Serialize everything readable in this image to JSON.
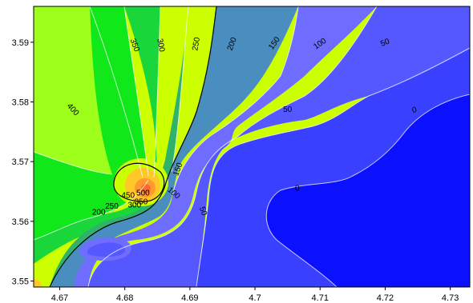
{
  "chart_data": {
    "type": "heatmap",
    "subtype": "filled-contour",
    "title": "",
    "xlabel": "",
    "ylabel": "",
    "xlim": [
      4.666,
      4.733
    ],
    "ylim": [
      3.549,
      3.596
    ],
    "x_ticks": [
      {
        "value": 4.67,
        "label": "4.67"
      },
      {
        "value": 4.68,
        "label": "4.68"
      },
      {
        "value": 4.69,
        "label": "4.69"
      },
      {
        "value": 4.7,
        "label": "4.7"
      },
      {
        "value": 4.71,
        "label": "4.71"
      },
      {
        "value": 4.72,
        "label": "4.72"
      },
      {
        "value": 4.73,
        "label": "4.73"
      }
    ],
    "y_ticks": [
      {
        "value": 3.55,
        "label": "3.55"
      },
      {
        "value": 3.56,
        "label": "3.56"
      },
      {
        "value": 3.57,
        "label": "3.57"
      },
      {
        "value": 3.58,
        "label": "3.58"
      },
      {
        "value": 3.59,
        "label": "3.59"
      }
    ],
    "levels": [
      0,
      50,
      100,
      150,
      200,
      250,
      300,
      350,
      400,
      450,
      500
    ],
    "colors": {
      "0": "#0b10ff",
      "50": "#3a40ff",
      "100": "#5558ff",
      "150": "#6f6dff",
      "200": "#4a8dbf",
      "250": "#2fb26b",
      "300": "#19d63a",
      "350": "#10e81a",
      "400": "#9eff1a",
      "450": "#ccff00",
      "500": "#ffc828"
    },
    "peak": {
      "x": 4.683,
      "y": 3.5662,
      "color": "#ff6a2a"
    },
    "contour_labels": [
      {
        "text": "350",
        "x": 4.6815,
        "y": 3.5895,
        "angle": 70
      },
      {
        "text": "300",
        "x": 4.6855,
        "y": 3.5895,
        "angle": 80
      },
      {
        "text": "250",
        "x": 4.691,
        "y": 3.5897,
        "angle": -80
      },
      {
        "text": "200",
        "x": 4.6965,
        "y": 3.5897,
        "angle": -70
      },
      {
        "text": "150",
        "x": 4.703,
        "y": 3.5898,
        "angle": -55
      },
      {
        "text": "100",
        "x": 4.71,
        "y": 3.5897,
        "angle": -35
      },
      {
        "text": "50",
        "x": 4.72,
        "y": 3.5899,
        "angle": -22
      },
      {
        "text": "400",
        "x": 4.672,
        "y": 3.5787,
        "angle": 48
      },
      {
        "text": "50",
        "x": 4.705,
        "y": 3.5787,
        "angle": 0
      },
      {
        "text": "0",
        "x": 4.7245,
        "y": 3.5786,
        "angle": -12
      },
      {
        "text": "150",
        "x": 4.6882,
        "y": 3.5687,
        "angle": -70
      },
      {
        "text": "100",
        "x": 4.6875,
        "y": 3.5647,
        "angle": 40
      },
      {
        "text": "50",
        "x": 4.692,
        "y": 3.5617,
        "angle": 70
      },
      {
        "text": "0",
        "x": 4.7065,
        "y": 3.5655,
        "angle": 0
      },
      {
        "text": "450",
        "x": 4.6805,
        "y": 3.5643,
        "angle": 0
      },
      {
        "text": "500",
        "x": 4.6828,
        "y": 3.5647,
        "angle": 0
      },
      {
        "text": "250",
        "x": 4.678,
        "y": 3.5625,
        "angle": 0
      },
      {
        "text": "200",
        "x": 4.676,
        "y": 3.5615,
        "angle": 0
      },
      {
        "text": "300",
        "x": 4.6815,
        "y": 3.5627,
        "angle": 0
      },
      {
        "text": "350",
        "x": 4.6825,
        "y": 3.5632,
        "angle": 0
      }
    ]
  }
}
